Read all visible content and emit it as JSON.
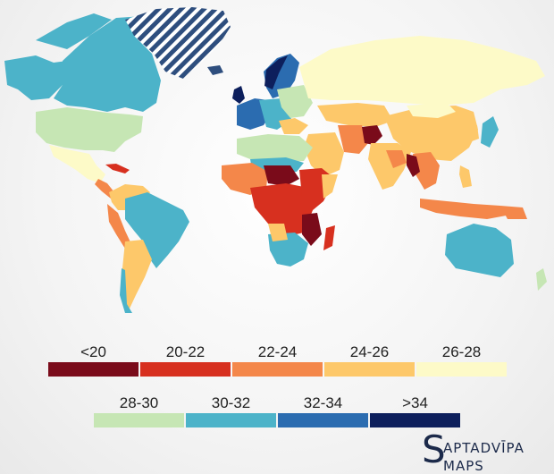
{
  "legend": {
    "row1": [
      {
        "label": "<20",
        "color": "#7a0b1a"
      },
      {
        "label": "20-22",
        "color": "#d7301f"
      },
      {
        "label": "22-24",
        "color": "#f4874a"
      },
      {
        "label": "24-26",
        "color": "#fdc86a"
      },
      {
        "label": "26-28",
        "color": "#fdfac8"
      }
    ],
    "row2": [
      {
        "label": "28-30",
        "color": "#c6e6b4"
      },
      {
        "label": "30-32",
        "color": "#4cb3c9"
      },
      {
        "label": "32-34",
        "color": "#2b6cb0"
      },
      {
        "label": ">34",
        "color": "#0d1f5c"
      }
    ]
  },
  "brand": {
    "initial": "S",
    "line1": "APTADVĪPA",
    "line2": "MAPS"
  },
  "colors": {
    "land_no_data": "#2e4e7e",
    "hatch": "#ffffff"
  }
}
